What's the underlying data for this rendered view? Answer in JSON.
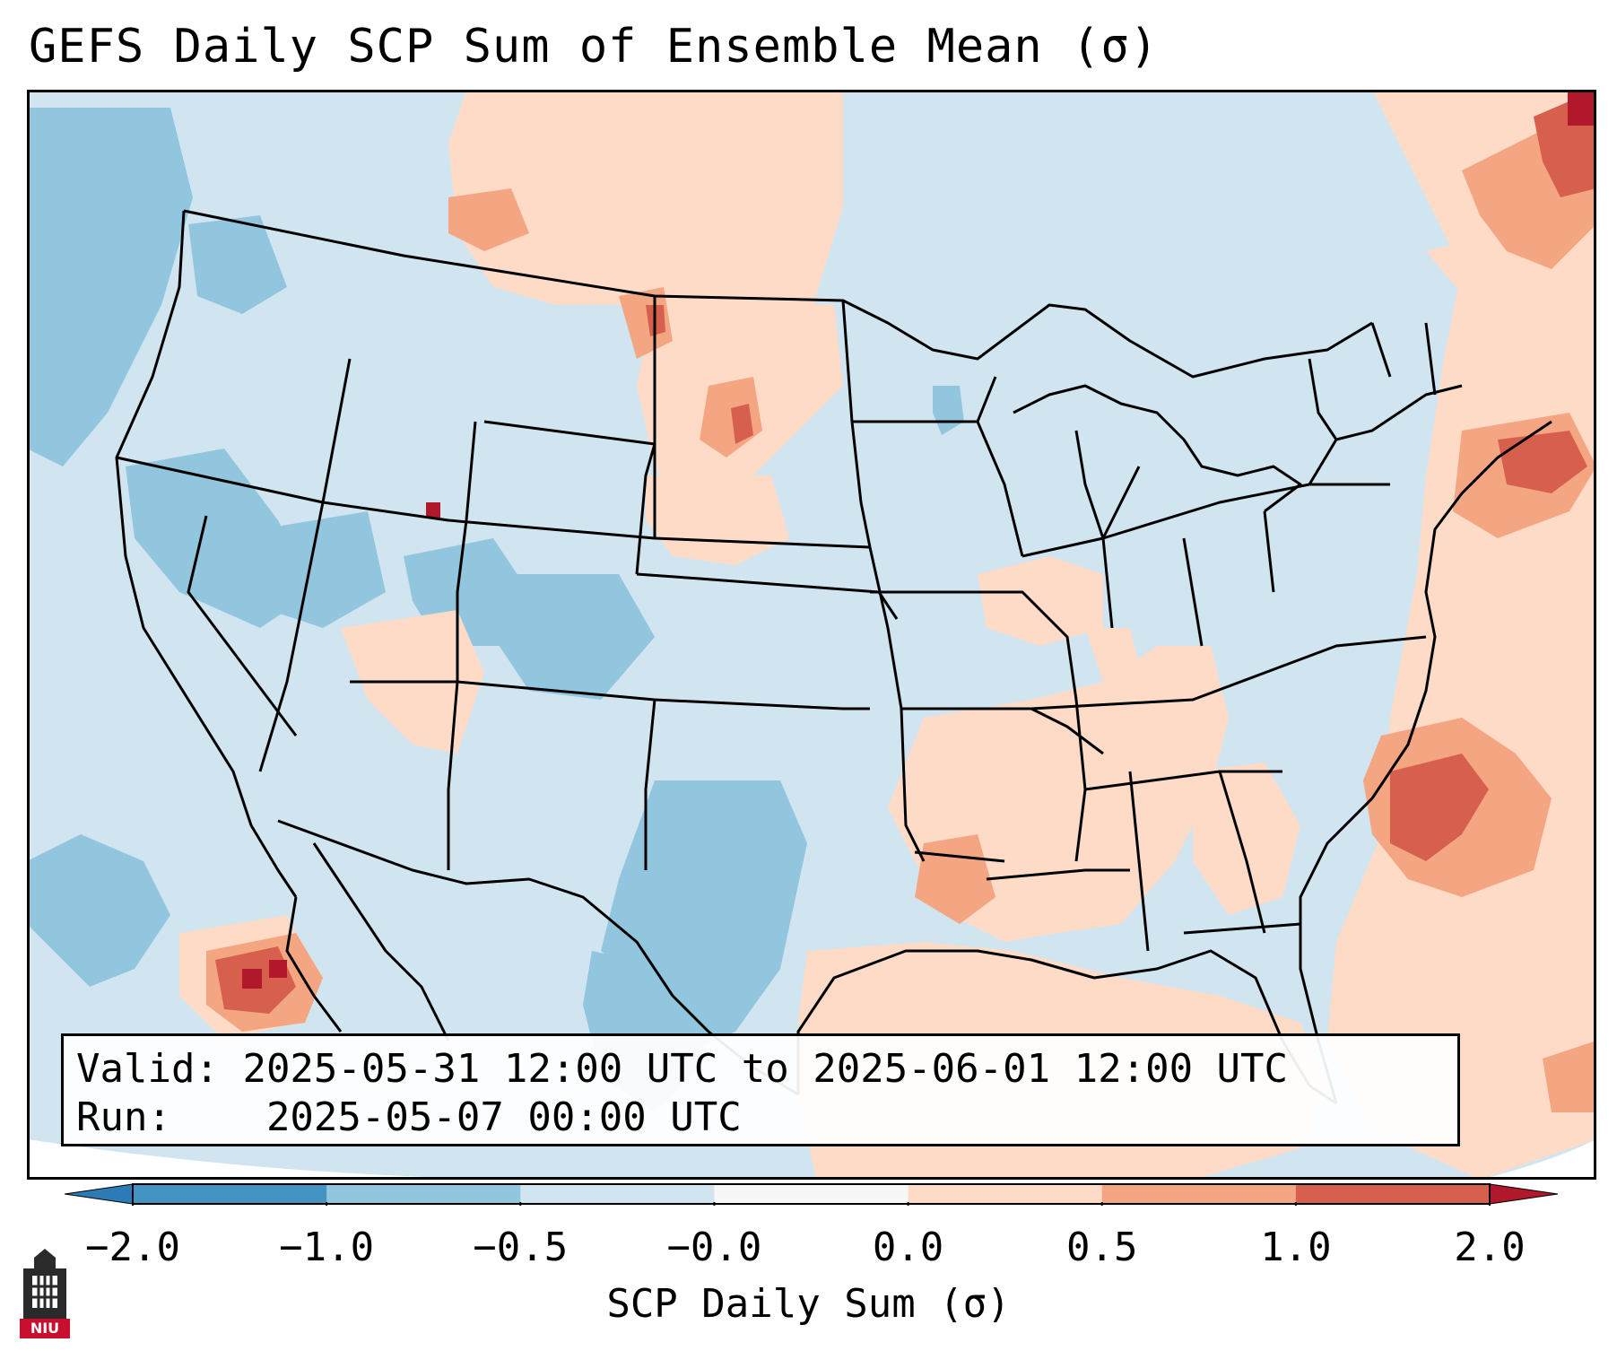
{
  "title": "GEFS Daily SCP Sum of Ensemble Mean (σ)",
  "info": {
    "valid_label": "Valid:",
    "valid_value": "2025-05-31 12:00 UTC to 2025-06-01 12:00 UTC",
    "run_label": "Run:",
    "run_value": "2025-05-07 00:00 UTC"
  },
  "colorbar": {
    "label": "SCP Daily Sum (σ)",
    "ticks": [
      "−2.0",
      "−1.0",
      "−0.5",
      "−0.0",
      "0.0",
      "0.5",
      "1.0",
      "2.0"
    ],
    "bins": [
      {
        "range": "< -2.0",
        "color": "#2c7bb6"
      },
      {
        "range": "-2.0 to -1.0",
        "color": "#4393c3"
      },
      {
        "range": "-1.0 to -0.5",
        "color": "#92c5de"
      },
      {
        "range": "-0.5 to -0.0",
        "color": "#d1e5f0"
      },
      {
        "range": "-0.0 to 0.0",
        "color": "#f7f7f7"
      },
      {
        "range": "0.0 to 0.5",
        "color": "#fddbc7"
      },
      {
        "range": "0.5 to 1.0",
        "color": "#f4a582"
      },
      {
        "range": "1.0 to 2.0",
        "color": "#d6604d"
      },
      {
        "range": "> 2.0",
        "color": "#b2182b"
      }
    ]
  },
  "logo": {
    "text": "NIU",
    "icon": "niu-tower-logo-icon"
  }
}
